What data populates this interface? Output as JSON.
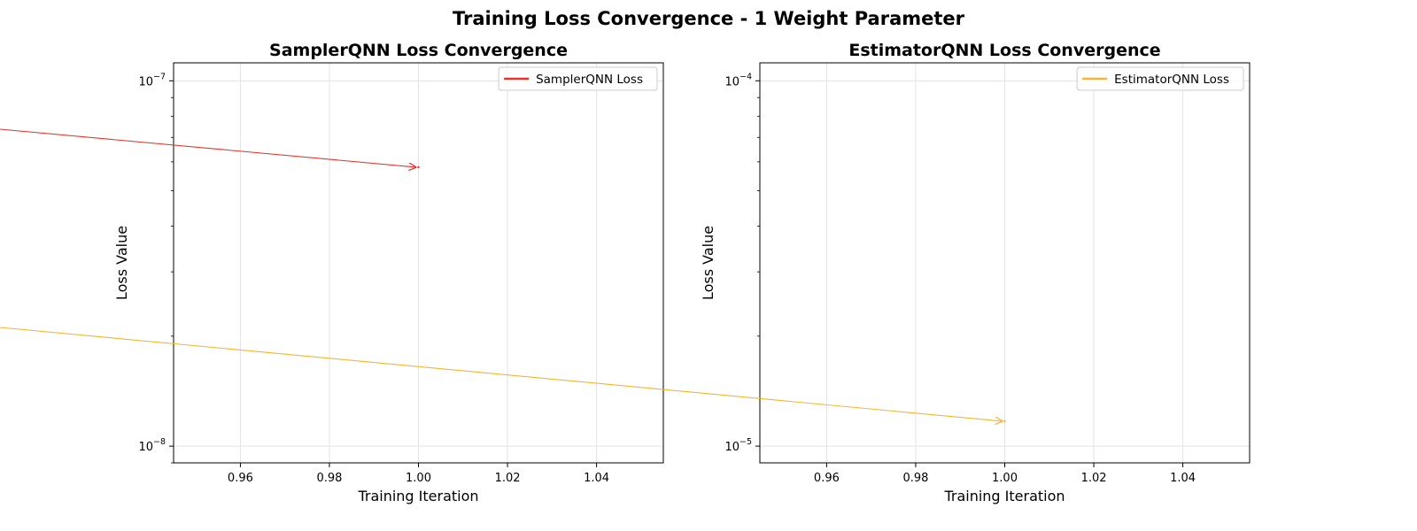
{
  "figure": {
    "title": "Training Loss Convergence - 1 Weight Parameter"
  },
  "chart_data": [
    {
      "type": "line",
      "title": "SamplerQNN Loss Convergence",
      "xlabel": "Training Iteration",
      "ylabel": "Loss Value",
      "yscale": "log",
      "xlim": [
        0.945,
        1.055
      ],
      "ylim": [
        9e-09,
        1.12e-07
      ],
      "xticks": [
        0.96,
        0.98,
        1.0,
        1.02,
        1.04
      ],
      "xtick_labels": [
        "0.96",
        "0.98",
        "1.00",
        "1.02",
        "1.04"
      ],
      "yticks": [
        {
          "value": 1e-08,
          "base": "10",
          "exp": "−8"
        },
        {
          "value": 1e-07,
          "base": "10",
          "exp": "−7"
        }
      ],
      "grid": true,
      "legend_position": "upper right",
      "series": [
        {
          "name": "SamplerQNN Loss",
          "color": "#e8332b",
          "x": [
            1.0
          ],
          "y": [
            5.8e-08
          ]
        }
      ]
    },
    {
      "type": "line",
      "title": "EstimatorQNN Loss Convergence",
      "xlabel": "Training Iteration",
      "ylabel": "Loss Value",
      "yscale": "log",
      "xlim": [
        0.945,
        1.055
      ],
      "ylim": [
        9e-06,
        0.000112
      ],
      "xticks": [
        0.96,
        0.98,
        1.0,
        1.02,
        1.04
      ],
      "xtick_labels": [
        "0.96",
        "0.98",
        "1.00",
        "1.02",
        "1.04"
      ],
      "yticks": [
        {
          "value": 1e-05,
          "base": "10",
          "exp": "−5"
        },
        {
          "value": 0.0001,
          "base": "10",
          "exp": "−4"
        }
      ],
      "grid": true,
      "legend_position": "upper right",
      "series": [
        {
          "name": "EstimatorQNN Loss",
          "color": "#f6b530",
          "x": [
            1.0
          ],
          "y": [
            1.17e-05
          ]
        }
      ]
    }
  ]
}
